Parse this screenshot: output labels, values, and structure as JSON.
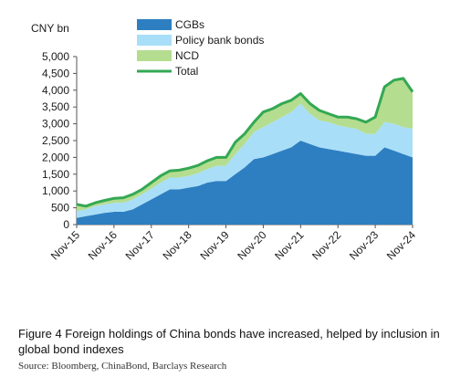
{
  "figure": {
    "caption": "Figure 4 Foreign holdings of China bonds have increased, helped by inclusion in global bond indexes",
    "source": "Source: Bloomberg, ChinaBond, Barclays Research"
  },
  "chart_data": {
    "type": "area",
    "title": "",
    "ylabel": "CNY bn",
    "xlabel": "",
    "ylim": [
      0,
      5000
    ],
    "yticks": [
      0,
      500,
      1000,
      1500,
      2000,
      2500,
      3000,
      3500,
      4000,
      4500,
      5000
    ],
    "ytick_labels": [
      "0",
      "500",
      "1,000",
      "1,500",
      "2,000",
      "2,500",
      "3,000",
      "3,500",
      "4,000",
      "4,500",
      "5,000"
    ],
    "xtick_labels": [
      "Nov-15",
      "Nov-16",
      "Nov-17",
      "Nov-18",
      "Nov-19",
      "Nov-20",
      "Nov-21",
      "Nov-22",
      "Nov-23",
      "Nov-24"
    ],
    "x_start": "2015-11",
    "x_end": "2024-11",
    "stacked": true,
    "grid": false,
    "legend_position": "top",
    "colors": {
      "CGBs": "#2d7fc1",
      "Policy bank bonds": "#a9def8",
      "NCD": "#b4dd90",
      "Total": "#33a853"
    },
    "series": [
      {
        "name": "CGBs",
        "type": "area",
        "x": [
          "2015-11",
          "2016-02",
          "2016-05",
          "2016-08",
          "2016-11",
          "2017-02",
          "2017-05",
          "2017-08",
          "2017-11",
          "2018-02",
          "2018-05",
          "2018-08",
          "2018-11",
          "2019-02",
          "2019-05",
          "2019-08",
          "2019-11",
          "2020-02",
          "2020-05",
          "2020-08",
          "2020-11",
          "2021-02",
          "2021-05",
          "2021-08",
          "2021-11",
          "2022-02",
          "2022-05",
          "2022-08",
          "2022-11",
          "2023-02",
          "2023-05",
          "2023-08",
          "2023-11",
          "2024-02",
          "2024-05",
          "2024-08",
          "2024-11"
        ],
        "values": [
          200,
          250,
          300,
          350,
          380,
          380,
          450,
          600,
          750,
          900,
          1050,
          1050,
          1100,
          1150,
          1250,
          1300,
          1300,
          1500,
          1700,
          1950,
          2000,
          2100,
          2200,
          2300,
          2500,
          2400,
          2300,
          2250,
          2200,
          2150,
          2100,
          2050,
          2050,
          2300,
          2200,
          2100,
          2000
        ]
      },
      {
        "name": "Policy bank bonds",
        "type": "area",
        "x": [
          "2015-11",
          "2016-02",
          "2016-05",
          "2016-08",
          "2016-11",
          "2017-02",
          "2017-05",
          "2017-08",
          "2017-11",
          "2018-02",
          "2018-05",
          "2018-08",
          "2018-11",
          "2019-02",
          "2019-05",
          "2019-08",
          "2019-11",
          "2020-02",
          "2020-05",
          "2020-08",
          "2020-11",
          "2021-02",
          "2021-05",
          "2021-08",
          "2021-11",
          "2022-02",
          "2022-05",
          "2022-08",
          "2022-11",
          "2023-02",
          "2023-05",
          "2023-08",
          "2023-11",
          "2024-02",
          "2024-05",
          "2024-08",
          "2024-11"
        ],
        "values": [
          200,
          200,
          250,
          250,
          270,
          270,
          300,
          300,
          320,
          350,
          350,
          350,
          350,
          380,
          400,
          450,
          450,
          600,
          700,
          800,
          900,
          950,
          1000,
          1050,
          1100,
          900,
          800,
          800,
          750,
          750,
          750,
          650,
          650,
          750,
          800,
          800,
          850
        ]
      },
      {
        "name": "NCD",
        "type": "area",
        "x": [
          "2015-11",
          "2016-02",
          "2016-05",
          "2016-08",
          "2016-11",
          "2017-02",
          "2017-05",
          "2017-08",
          "2017-11",
          "2018-02",
          "2018-05",
          "2018-08",
          "2018-11",
          "2019-02",
          "2019-05",
          "2019-08",
          "2019-11",
          "2020-02",
          "2020-05",
          "2020-08",
          "2020-11",
          "2021-02",
          "2021-05",
          "2021-08",
          "2021-11",
          "2022-02",
          "2022-05",
          "2022-08",
          "2022-11",
          "2023-02",
          "2023-05",
          "2023-08",
          "2023-11",
          "2024-02",
          "2024-05",
          "2024-08",
          "2024-11"
        ],
        "values": [
          200,
          100,
          100,
          120,
          130,
          150,
          150,
          150,
          180,
          200,
          200,
          220,
          230,
          230,
          250,
          250,
          250,
          350,
          300,
          300,
          450,
          400,
          400,
          350,
          300,
          300,
          300,
          250,
          250,
          300,
          300,
          350,
          500,
          1050,
          1300,
          1450,
          1100
        ]
      },
      {
        "name": "Total",
        "type": "line",
        "x": [
          "2015-11",
          "2016-02",
          "2016-05",
          "2016-08",
          "2016-11",
          "2017-02",
          "2017-05",
          "2017-08",
          "2017-11",
          "2018-02",
          "2018-05",
          "2018-08",
          "2018-11",
          "2019-02",
          "2019-05",
          "2019-08",
          "2019-11",
          "2020-02",
          "2020-05",
          "2020-08",
          "2020-11",
          "2021-02",
          "2021-05",
          "2021-08",
          "2021-11",
          "2022-02",
          "2022-05",
          "2022-08",
          "2022-11",
          "2023-02",
          "2023-05",
          "2023-08",
          "2023-11",
          "2024-02",
          "2024-05",
          "2024-08",
          "2024-11"
        ],
        "values": [
          600,
          550,
          650,
          720,
          780,
          800,
          900,
          1050,
          1250,
          1450,
          1600,
          1620,
          1680,
          1760,
          1900,
          2000,
          2000,
          2450,
          2700,
          3050,
          3350,
          3450,
          3600,
          3700,
          3900,
          3600,
          3400,
          3300,
          3200,
          3200,
          3150,
          3050,
          3200,
          4100,
          4300,
          4350,
          3950
        ]
      }
    ]
  }
}
